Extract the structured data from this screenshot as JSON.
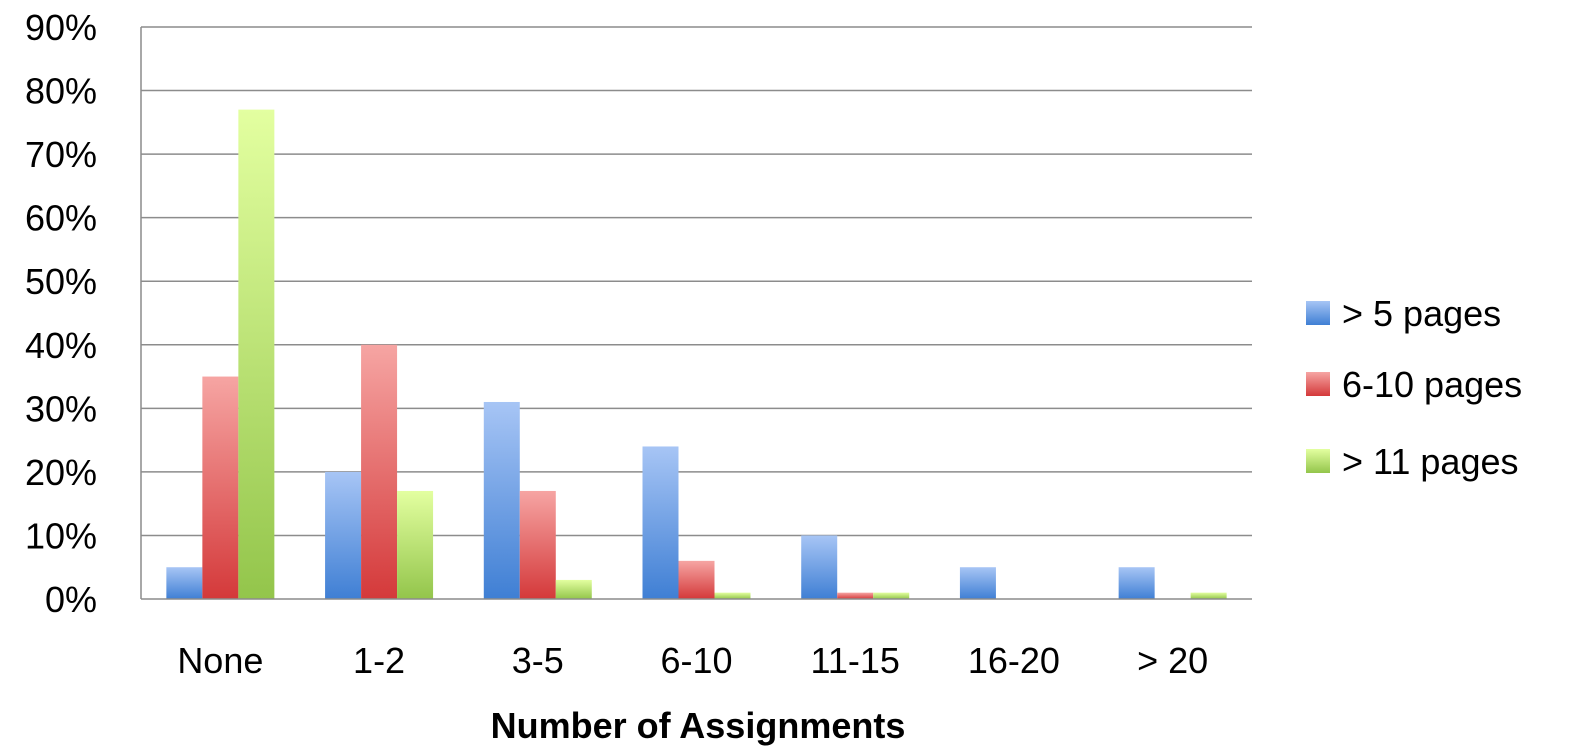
{
  "chart_data": {
    "type": "bar",
    "title": "",
    "xlabel": "Number of Assignments",
    "ylabel": "",
    "ylim": [
      0,
      90
    ],
    "y_ticks": [
      0,
      10,
      20,
      30,
      40,
      50,
      60,
      70,
      80,
      90
    ],
    "y_tick_labels": [
      "0%",
      "10%",
      "20%",
      "30%",
      "40%",
      "50%",
      "60%",
      "70%",
      "80%",
      "90%"
    ],
    "categories": [
      "None",
      "1-2",
      "3-5",
      "6-10",
      "11-15",
      "16-20",
      "> 20"
    ],
    "series": [
      {
        "name": "> 5 pages",
        "color_top": "#a7c5f5",
        "color_bottom": "#3f7fd4",
        "values": [
          5,
          20,
          31,
          24,
          10,
          5,
          5
        ]
      },
      {
        "name": "6-10 pages",
        "color_top": "#f6a5a3",
        "color_bottom": "#d4393a",
        "values": [
          35,
          40,
          17,
          6,
          1,
          0,
          0
        ]
      },
      {
        "name": "> 11 pages",
        "color_top": "#e3ffa0",
        "color_bottom": "#93c54b",
        "values": [
          77,
          17,
          3,
          1,
          1,
          0,
          1
        ]
      }
    ],
    "grid": true,
    "legend_position": "right"
  }
}
